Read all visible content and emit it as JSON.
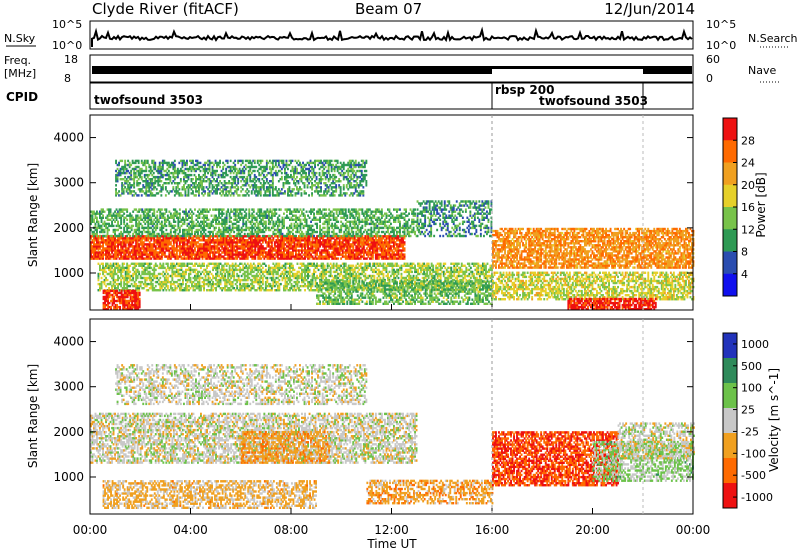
{
  "header": {
    "station": "Clyde River (fitACF)",
    "beam": "Beam 07",
    "date": "12/Jun/2014"
  },
  "noise_panel": {
    "left_label": "N.Sky",
    "right_label": "N.Search",
    "left_ticks": [
      "10^5",
      "10^0"
    ],
    "right_ticks": [
      "10^5",
      "10^0"
    ]
  },
  "freq_panel": {
    "left_label_1": "Freq.",
    "left_label_2": "[MHz]",
    "right_label": "Nave",
    "left_ticks": [
      "18",
      "8"
    ],
    "right_ticks": [
      "60",
      "0"
    ]
  },
  "cpid_panel": {
    "label": "CPID",
    "modes": [
      {
        "name": "twofsound 3503",
        "start_hour": 0,
        "end_hour": 24
      },
      {
        "name": "rbsp 200",
        "start_hour": 16.0,
        "end_hour": 21.8
      },
      {
        "name": "twofsound 3503",
        "start_hour": 16.0,
        "end_hour": 21.8
      }
    ]
  },
  "chart_data": [
    {
      "type": "heatmap",
      "parameter": "Power",
      "xlabel": "",
      "ylabel": "Slant Range [km]",
      "xlim": [
        0,
        24
      ],
      "ylim": [
        180,
        4500
      ],
      "yticks": [
        "1000",
        "2000",
        "3000",
        "4000"
      ],
      "colorbar": {
        "label": "Power [dB]",
        "ticks": [
          "28",
          "24",
          "20",
          "16",
          "12",
          "8",
          "4"
        ],
        "colors": [
          "#ee1111",
          "#ff6a00",
          "#f0a020",
          "#e6d02a",
          "#78c34a",
          "#2e9a54",
          "#2a4db0",
          "#1010ee"
        ],
        "range": [
          0,
          30
        ]
      },
      "features": [
        {
          "t0": 0.0,
          "t1": 12.5,
          "r0": 1300,
          "r1": 1800,
          "level": 26,
          "density": 0.85
        },
        {
          "t0": 0.0,
          "t1": 13.0,
          "r0": 1800,
          "r1": 2400,
          "level": 11,
          "density": 0.55
        },
        {
          "t0": 1.0,
          "t1": 11.0,
          "r0": 2700,
          "r1": 3500,
          "level": 10,
          "density": 0.5
        },
        {
          "t0": 0.3,
          "t1": 16.0,
          "r0": 600,
          "r1": 1200,
          "level": 14,
          "density": 0.6
        },
        {
          "t0": 0.5,
          "t1": 2.0,
          "r0": 180,
          "r1": 600,
          "level": 27,
          "density": 0.8
        },
        {
          "t0": 9.0,
          "t1": 16.0,
          "r0": 300,
          "r1": 800,
          "level": 12,
          "density": 0.55
        },
        {
          "t0": 13.0,
          "t1": 16.0,
          "r0": 1800,
          "r1": 2600,
          "level": 9,
          "density": 0.45
        },
        {
          "t0": 16.0,
          "t1": 24.0,
          "r0": 1100,
          "r1": 2000,
          "level": 22,
          "density": 0.7
        },
        {
          "t0": 16.0,
          "t1": 24.0,
          "r0": 400,
          "r1": 1000,
          "level": 16,
          "density": 0.6
        },
        {
          "t0": 19.0,
          "t1": 22.5,
          "r0": 180,
          "r1": 420,
          "level": 28,
          "density": 0.8
        }
      ]
    },
    {
      "type": "heatmap",
      "parameter": "Velocity",
      "xlabel": "Time UT",
      "ylabel": "Slant Range [km]",
      "xlim": [
        0,
        24
      ],
      "ylim": [
        180,
        4500
      ],
      "xticks": [
        "00:00",
        "04:00",
        "08:00",
        "12:00",
        "16:00",
        "20:00",
        "00:00"
      ],
      "yticks": [
        "1000",
        "2000",
        "3000",
        "4000"
      ],
      "colorbar": {
        "label": "Velocity [m s^-1]",
        "ticks": [
          "1000",
          "500",
          "100",
          "25",
          "-25",
          "-100",
          "-500",
          "-1000"
        ],
        "colors": [
          "#2233bb",
          "#2e8a5a",
          "#6cc24a",
          "#c8c8c8",
          "#f0a020",
          "#ff6a00",
          "#ee1111"
        ],
        "range": [
          -1000,
          1000
        ]
      },
      "features": [
        {
          "t0": 0.0,
          "t1": 13.0,
          "r0": 1300,
          "r1": 2400,
          "level": 0,
          "density": 0.6
        },
        {
          "t0": 1.0,
          "t1": 11.0,
          "r0": 2600,
          "r1": 3500,
          "level": 0,
          "density": 0.45
        },
        {
          "t0": 0.5,
          "t1": 9.0,
          "r0": 300,
          "r1": 900,
          "level": -200,
          "density": 0.55
        },
        {
          "t0": 6.0,
          "t1": 9.5,
          "r0": 1300,
          "r1": 2000,
          "level": -300,
          "density": 0.6
        },
        {
          "t0": 11.0,
          "t1": 16.0,
          "r0": 400,
          "r1": 900,
          "level": -300,
          "density": 0.55
        },
        {
          "t0": 16.0,
          "t1": 21.0,
          "r0": 800,
          "r1": 2000,
          "level": -700,
          "density": 0.7
        },
        {
          "t0": 20.0,
          "t1": 24.0,
          "r0": 900,
          "r1": 1800,
          "level": 200,
          "density": 0.55
        },
        {
          "t0": 21.0,
          "t1": 24.0,
          "r0": 1400,
          "r1": 2200,
          "level": 0,
          "density": 0.5
        }
      ]
    }
  ]
}
